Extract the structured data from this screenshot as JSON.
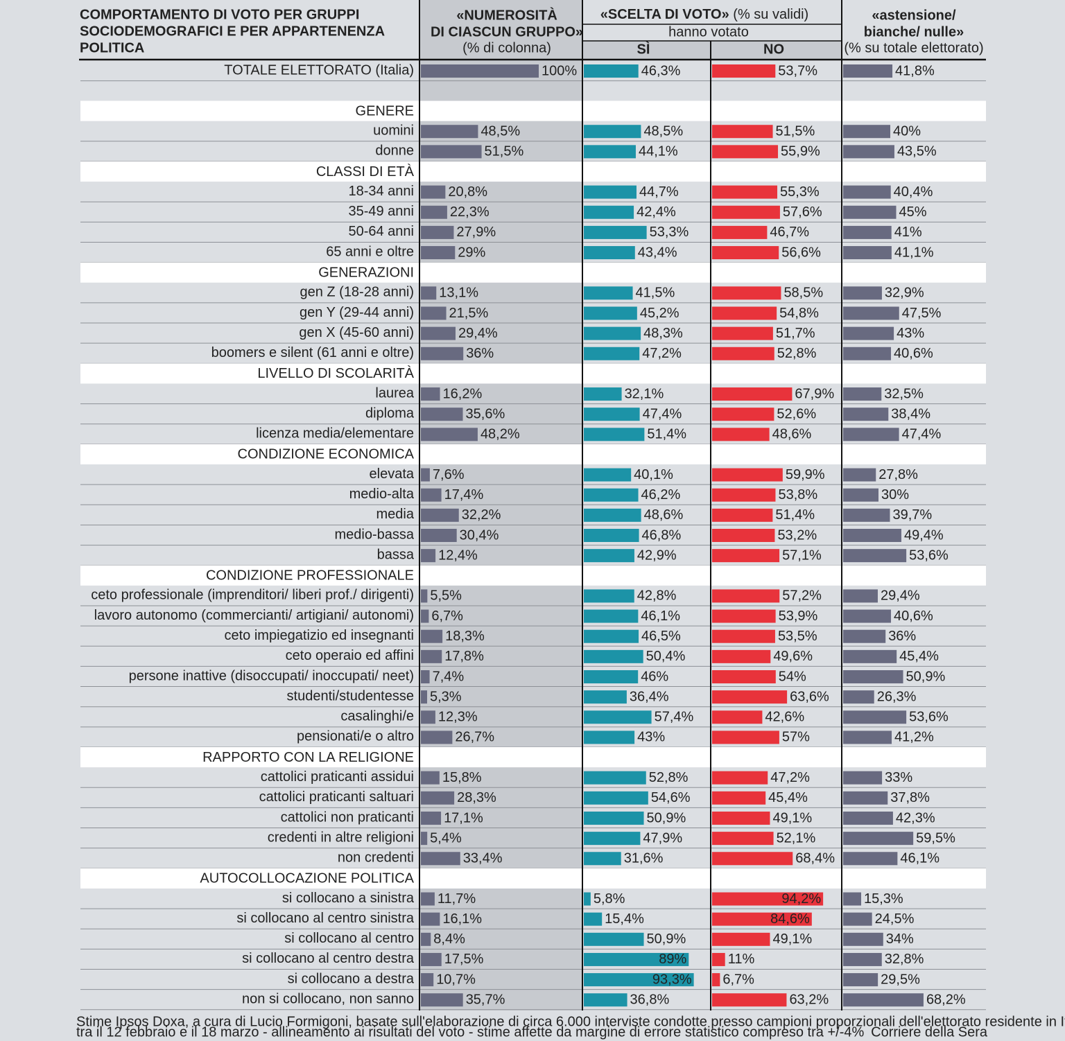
{
  "chart_data": {
    "type": "table-bar",
    "title": [
      "COMPORTAMENTO DI VOTO PER GRUPPI",
      "SOCIODEMOGRAFICI E PER APPARTENENZA",
      "POLITICA"
    ],
    "column_headers": {
      "group_size": {
        "title": [
          "«NUMEROSITÀ",
          "DI CIASCUN GRUPPO»"
        ],
        "unit": "(% di colonna)"
      },
      "vote_choice": {
        "title": "«SCELTA DI VOTO»",
        "unit": "(% su validi)",
        "subtitle": "hanno votato",
        "yes": "SÌ",
        "no": "NO"
      },
      "abstention": {
        "title": [
          "«astensione/",
          "bianche/ nulle»"
        ],
        "unit": "(% su totale elettorato)"
      }
    },
    "colors": [
      "#686a80",
      "#1c93a7",
      "#e8333b",
      "#686a80"
    ],
    "total": {
      "label": "TOTALE ELETTORATO (Italia)",
      "values": [
        100,
        46.3,
        53.7,
        41.8
      ],
      "value_labels": [
        "100%",
        "46,3%",
        "53,7%",
        "41,8%"
      ]
    },
    "sections": [
      {
        "name": "GENERE",
        "rows": [
          {
            "label": "uomini",
            "values": [
              48.5,
              48.5,
              51.5,
              40
            ],
            "value_labels": [
              "48,5%",
              "48,5%",
              "51,5%",
              "40%"
            ]
          },
          {
            "label": "donne",
            "values": [
              51.5,
              44.1,
              55.9,
              43.5
            ],
            "value_labels": [
              "51,5%",
              "44,1%",
              "55,9%",
              "43,5%"
            ]
          }
        ]
      },
      {
        "name": "CLASSI DI ETÀ",
        "rows": [
          {
            "label": "18-34 anni",
            "values": [
              20.8,
              44.7,
              55.3,
              40.4
            ],
            "value_labels": [
              "20,8%",
              "44,7%",
              "55,3%",
              "40,4%"
            ]
          },
          {
            "label": "35-49 anni",
            "values": [
              22.3,
              42.4,
              57.6,
              45
            ],
            "value_labels": [
              "22,3%",
              "42,4%",
              "57,6%",
              "45%"
            ]
          },
          {
            "label": "50-64 anni",
            "values": [
              27.9,
              53.3,
              46.7,
              41
            ],
            "value_labels": [
              "27,9%",
              "53,3%",
              "46,7%",
              "41%"
            ]
          },
          {
            "label": "65 anni e oltre",
            "values": [
              29,
              43.4,
              56.6,
              41.1
            ],
            "value_labels": [
              "29%",
              "43,4%",
              "56,6%",
              "41,1%"
            ]
          }
        ]
      },
      {
        "name": "GENERAZIONI",
        "rows": [
          {
            "label": "gen Z (18-28 anni)",
            "values": [
              13.1,
              41.5,
              58.5,
              32.9
            ],
            "value_labels": [
              "13,1%",
              "41,5%",
              "58,5%",
              "32,9%"
            ]
          },
          {
            "label": "gen Y (29-44 anni)",
            "values": [
              21.5,
              45.2,
              54.8,
              47.5
            ],
            "value_labels": [
              "21,5%",
              "45,2%",
              "54,8%",
              "47,5%"
            ]
          },
          {
            "label": "gen X (45-60 anni)",
            "values": [
              29.4,
              48.3,
              51.7,
              43
            ],
            "value_labels": [
              "29,4%",
              "48,3%",
              "51,7%",
              "43%"
            ]
          },
          {
            "label": "boomers e silent (61 anni e oltre)",
            "values": [
              36,
              47.2,
              52.8,
              40.6
            ],
            "value_labels": [
              "36%",
              "47,2%",
              "52,8%",
              "40,6%"
            ]
          }
        ]
      },
      {
        "name": "LIVELLO DI SCOLARITÀ",
        "rows": [
          {
            "label": "laurea",
            "values": [
              16.2,
              32.1,
              67.9,
              32.5
            ],
            "value_labels": [
              "16,2%",
              "32,1%",
              "67,9%",
              "32,5%"
            ]
          },
          {
            "label": "diploma",
            "values": [
              35.6,
              47.4,
              52.6,
              38.4
            ],
            "value_labels": [
              "35,6%",
              "47,4%",
              "52,6%",
              "38,4%"
            ]
          },
          {
            "label": "licenza media/elementare",
            "values": [
              48.2,
              51.4,
              48.6,
              47.4
            ],
            "value_labels": [
              "48,2%",
              "51,4%",
              "48,6%",
              "47,4%"
            ]
          }
        ]
      },
      {
        "name": "CONDIZIONE ECONOMICA",
        "rows": [
          {
            "label": "elevata",
            "values": [
              7.6,
              40.1,
              59.9,
              27.8
            ],
            "value_labels": [
              "7,6%",
              "40,1%",
              "59,9%",
              "27,8%"
            ]
          },
          {
            "label": "medio-alta",
            "values": [
              17.4,
              46.2,
              53.8,
              30
            ],
            "value_labels": [
              "17,4%",
              "46,2%",
              "53,8%",
              "30%"
            ]
          },
          {
            "label": "media",
            "values": [
              32.2,
              48.6,
              51.4,
              39.7
            ],
            "value_labels": [
              "32,2%",
              "48,6%",
              "51,4%",
              "39,7%"
            ]
          },
          {
            "label": "medio-bassa",
            "values": [
              30.4,
              46.8,
              53.2,
              49.4
            ],
            "value_labels": [
              "30,4%",
              "46,8%",
              "53,2%",
              "49,4%"
            ]
          },
          {
            "label": "bassa",
            "values": [
              12.4,
              42.9,
              57.1,
              53.6
            ],
            "value_labels": [
              "12,4%",
              "42,9%",
              "57,1%",
              "53,6%"
            ]
          }
        ]
      },
      {
        "name": "CONDIZIONE PROFESSIONALE",
        "rows": [
          {
            "label": "ceto professionale (imprenditori/ liberi prof./ dirigenti)",
            "values": [
              5.5,
              42.8,
              57.2,
              29.4
            ],
            "value_labels": [
              "5,5%",
              "42,8%",
              "57,2%",
              "29,4%"
            ]
          },
          {
            "label": "lavoro autonomo (commercianti/ artigiani/ autonomi)",
            "values": [
              6.7,
              46.1,
              53.9,
              40.6
            ],
            "value_labels": [
              "6,7%",
              "46,1%",
              "53,9%",
              "40,6%"
            ]
          },
          {
            "label": "ceto impiegatizio ed insegnanti",
            "values": [
              18.3,
              46.5,
              53.5,
              36
            ],
            "value_labels": [
              "18,3%",
              "46,5%",
              "53,5%",
              "36%"
            ]
          },
          {
            "label": "ceto operaio ed affini",
            "values": [
              17.8,
              50.4,
              49.6,
              45.4
            ],
            "value_labels": [
              "17,8%",
              "50,4%",
              "49,6%",
              "45,4%"
            ]
          },
          {
            "label": "persone inattive (disoccupati/ inoccupati/ neet)",
            "values": [
              7.4,
              46,
              54,
              50.9
            ],
            "value_labels": [
              "7,4%",
              "46%",
              "54%",
              "50,9%"
            ]
          },
          {
            "label": "studenti/studentesse",
            "values": [
              5.3,
              36.4,
              63.6,
              26.3
            ],
            "value_labels": [
              "5,3%",
              "36,4%",
              "63,6%",
              "26,3%"
            ]
          },
          {
            "label": "casalinghi/e",
            "values": [
              12.3,
              57.4,
              42.6,
              53.6
            ],
            "value_labels": [
              "12,3%",
              "57,4%",
              "42,6%",
              "53,6%"
            ]
          },
          {
            "label": "pensionati/e o altro",
            "values": [
              26.7,
              43,
              57,
              41.2
            ],
            "value_labels": [
              "26,7%",
              "43%",
              "57%",
              "41,2%"
            ]
          }
        ]
      },
      {
        "name": "RAPPORTO CON LA RELIGIONE",
        "rows": [
          {
            "label": "cattolici praticanti assidui",
            "values": [
              15.8,
              52.8,
              47.2,
              33
            ],
            "value_labels": [
              "15,8%",
              "52,8%",
              "47,2%",
              "33%"
            ]
          },
          {
            "label": "cattolici praticanti saltuari",
            "values": [
              28.3,
              54.6,
              45.4,
              37.8
            ],
            "value_labels": [
              "28,3%",
              "54,6%",
              "45,4%",
              "37,8%"
            ]
          },
          {
            "label": "cattolici non praticanti",
            "values": [
              17.1,
              50.9,
              49.1,
              42.3
            ],
            "value_labels": [
              "17,1%",
              "50,9%",
              "49,1%",
              "42,3%"
            ]
          },
          {
            "label": "credenti in altre religioni",
            "values": [
              5.4,
              47.9,
              52.1,
              59.5
            ],
            "value_labels": [
              "5,4%",
              "47,9%",
              "52,1%",
              "59,5%"
            ]
          },
          {
            "label": "non credenti",
            "values": [
              33.4,
              31.6,
              68.4,
              46.1
            ],
            "value_labels": [
              "33,4%",
              "31,6%",
              "68,4%",
              "46,1%"
            ]
          }
        ]
      },
      {
        "name": "AUTOCOLLOCAZIONE POLITICA",
        "rows": [
          {
            "label": "si collocano a sinistra",
            "values": [
              11.7,
              5.8,
              94.2,
              15.3
            ],
            "value_labels": [
              "11,7%",
              "5,8%",
              "94,2%",
              "15,3%"
            ]
          },
          {
            "label": "si collocano al centro sinistra",
            "values": [
              16.1,
              15.4,
              84.6,
              24.5
            ],
            "value_labels": [
              "16,1%",
              "15,4%",
              "84,6%",
              "24,5%"
            ]
          },
          {
            "label": "si collocano al centro",
            "values": [
              8.4,
              50.9,
              49.1,
              34
            ],
            "value_labels": [
              "8,4%",
              "50,9%",
              "49,1%",
              "34%"
            ]
          },
          {
            "label": "si collocano al centro destra",
            "values": [
              17.5,
              89,
              11,
              32.8
            ],
            "value_labels": [
              "17,5%",
              "89%",
              "11%",
              "32,8%"
            ]
          },
          {
            "label": "si collocano a destra",
            "values": [
              10.7,
              93.3,
              6.7,
              29.5
            ],
            "value_labels": [
              "10,7%",
              "93,3%",
              "6,7%",
              "29,5%"
            ]
          },
          {
            "label": "non si collocano, non sanno",
            "values": [
              35.7,
              36.8,
              63.2,
              68.2
            ],
            "value_labels": [
              "35,7%",
              "36,8%",
              "63,2%",
              "68,2%"
            ]
          }
        ]
      }
    ],
    "source": [
      "Stime Ipsos Doxa, a cura di Lucio Formigoni, basate sull'elaborazione di circa 6.000 interviste condotte presso campioni proporzionali dell'elettorato residente in Italia",
      "tra il 12 febbraio e il 18 marzo - allineamento ai risultati del voto - stime affette da margine di errore statistico compreso tra +/-4%"
    ],
    "credit": "Corriere della Sera"
  }
}
